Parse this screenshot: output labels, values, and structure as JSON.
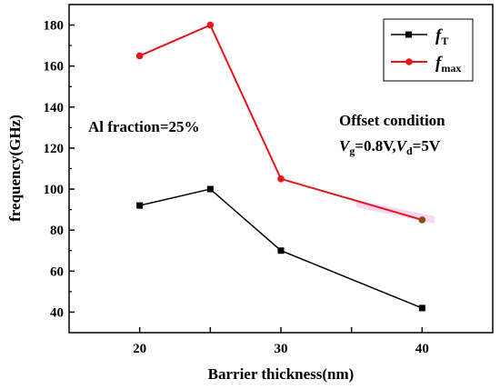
{
  "chart_data": {
    "type": "line",
    "xlabel": "Barrier  thickness(nm)",
    "ylabel": "frequency(GHz)",
    "xlim": [
      15,
      45
    ],
    "ylim": [
      30,
      190
    ],
    "x_ticks": [
      20,
      25,
      30,
      35,
      40
    ],
    "x_tick_labels": [
      "20",
      "",
      "30",
      "",
      "40"
    ],
    "y_ticks": [
      40,
      60,
      80,
      100,
      120,
      140,
      160,
      180
    ],
    "y_tick_labels": [
      "40",
      "60",
      "80",
      "100",
      "120",
      "140",
      "160",
      "180"
    ],
    "grid": false,
    "legend_position": "top-right",
    "x": [
      20,
      25,
      30,
      40
    ],
    "series": [
      {
        "name": "fT",
        "legend_main": "f",
        "legend_sub": "T",
        "color": "#000000",
        "marker": "square",
        "values": [
          92,
          100,
          70,
          42
        ]
      },
      {
        "name": "fmax",
        "legend_main": "f",
        "legend_sub": "max",
        "color": "#e8141c",
        "marker": "circle",
        "values": [
          165,
          180,
          105,
          85
        ]
      }
    ],
    "annotations": [
      {
        "text": "Al fraction=25%"
      },
      {
        "text": "Offset condition"
      },
      {
        "text_parts": [
          "V",
          "g",
          "=0.8V,",
          "V",
          "d",
          "=5V"
        ]
      }
    ]
  }
}
